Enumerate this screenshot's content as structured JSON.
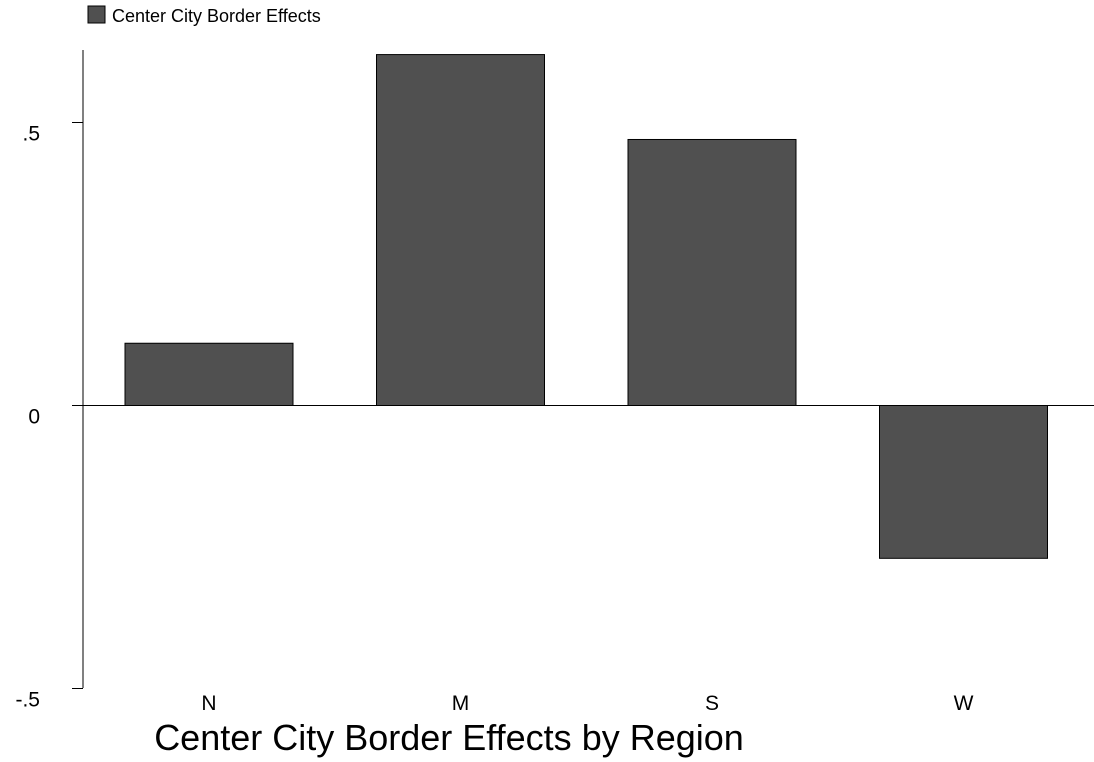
{
  "chart_data": {
    "type": "bar",
    "title": "Center City Border Effects by Region",
    "xlabel": "",
    "ylabel": "",
    "categories": [
      "N",
      "M",
      "S",
      "W"
    ],
    "series": [
      {
        "name": "Center City Border Effects",
        "values": [
          0.11,
          0.62,
          0.47,
          -0.27
        ]
      }
    ],
    "ylim": [
      -0.5,
      0.5
    ],
    "yticks": [
      {
        "value": 0.5,
        "label": ".5"
      },
      {
        "value": 0,
        "label": "0"
      },
      {
        "value": -0.5,
        "label": "-.5"
      }
    ],
    "grid": false,
    "legend": {
      "position": "top-left",
      "label": "Center City Border Effects"
    },
    "colors": {
      "bar": "#505050",
      "axis": "#000000",
      "text": "#000000"
    }
  }
}
